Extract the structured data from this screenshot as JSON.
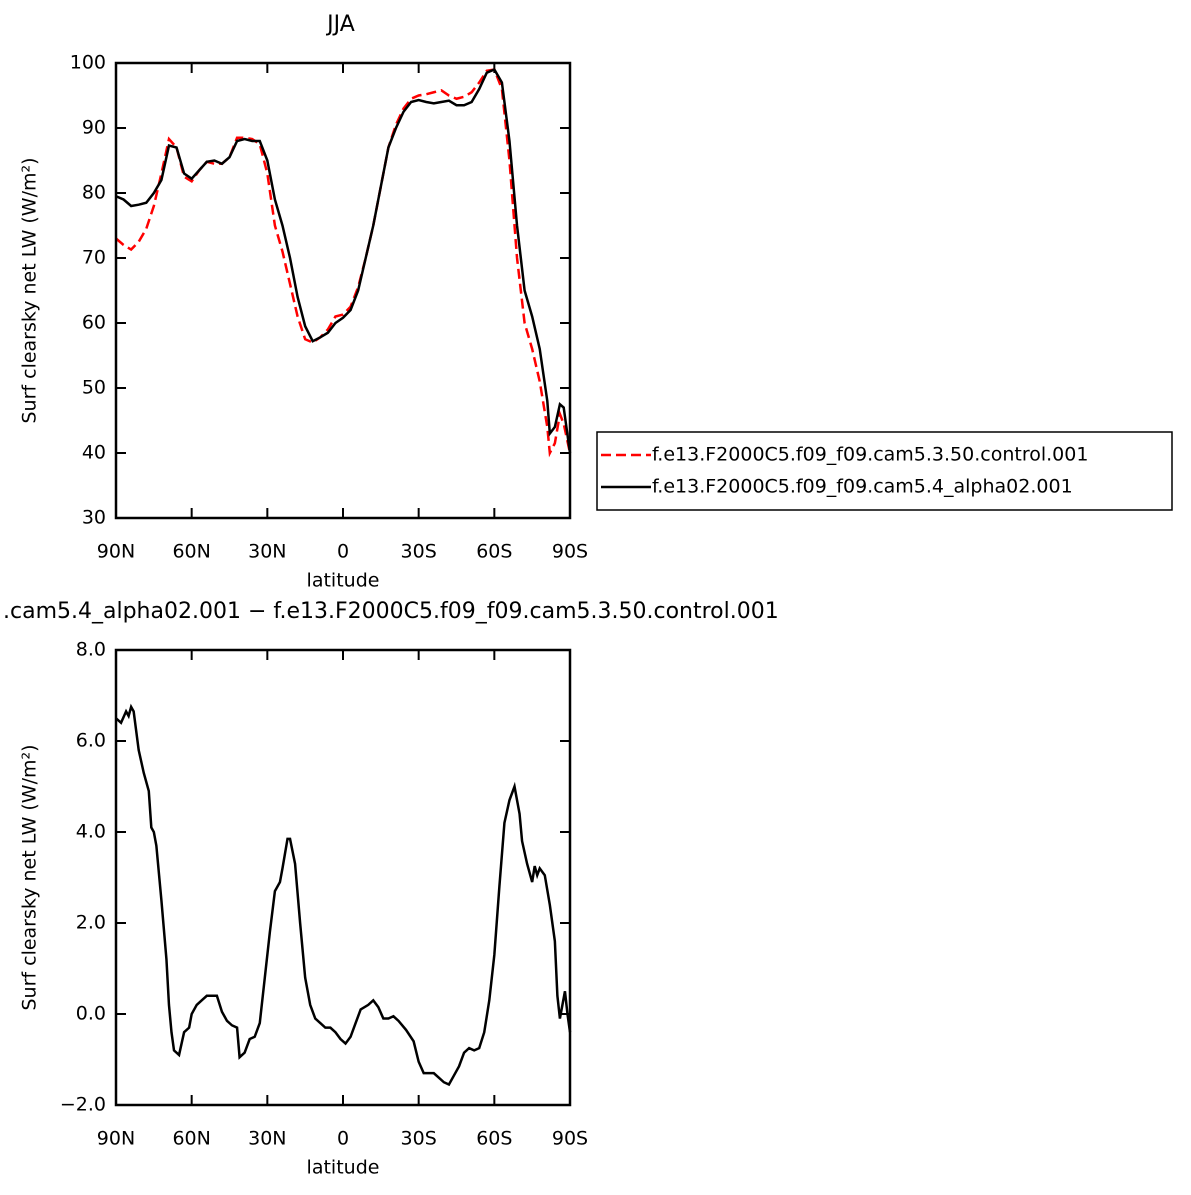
{
  "chart_data": [
    {
      "type": "line",
      "title": "JJA",
      "x_label": "latitude",
      "y_label": "Surf clearsky net LW (W/m²)",
      "x": [
        90,
        87,
        84,
        81,
        78,
        75,
        72,
        69,
        66,
        63,
        60,
        57,
        54,
        51,
        48,
        45,
        42,
        39,
        36,
        33,
        30,
        27,
        24,
        21,
        18,
        15,
        12,
        9,
        6,
        3,
        0,
        -3,
        -6,
        -9,
        -12,
        -15,
        -18,
        -21,
        -24,
        -27,
        -30,
        -33,
        -36,
        -39,
        -42,
        -45,
        -48,
        -51,
        -54,
        -57,
        -60,
        -63,
        -66,
        -69,
        -72,
        -75,
        -78,
        -81,
        -82,
        -84,
        -86,
        -87.5,
        -90
      ],
      "series": [
        {
          "name": "f.e13.F2000C5.f09_f09.cam5.3.50.control.001",
          "color": "#ff0000",
          "dash": true,
          "values": [
            73,
            72,
            71.3,
            72.5,
            74.5,
            78,
            83,
            88.3,
            87,
            82.5,
            81.8,
            83.5,
            84.8,
            84.5,
            84.5,
            85.5,
            88.5,
            88.5,
            88.3,
            87.5,
            83,
            75,
            71,
            66,
            61,
            57.5,
            57,
            57.8,
            59,
            61,
            61.3,
            62.5,
            65.5,
            70,
            75,
            81,
            87,
            90.5,
            93,
            94.5,
            95,
            95.2,
            95.5,
            95.8,
            95,
            94.5,
            94.8,
            95.5,
            97,
            98.8,
            99,
            96,
            85,
            70,
            60,
            56,
            51,
            44,
            40,
            41.5,
            46,
            44.5,
            40
          ]
        },
        {
          "name": "f.e13.F2000C5.f09_f09.cam5.4_alpha02.001",
          "color": "#000000",
          "dash": false,
          "values": [
            79.5,
            79,
            78,
            78.2,
            78.5,
            80,
            82,
            87.3,
            87,
            83,
            82.2,
            83.5,
            84.8,
            85,
            84.5,
            85.5,
            88,
            88.3,
            88,
            88,
            85,
            79,
            75,
            70,
            64,
            59.5,
            57.2,
            57.8,
            58.5,
            60,
            60.8,
            62,
            65,
            70,
            75,
            81,
            87,
            90,
            92.5,
            94,
            94.3,
            94,
            93.8,
            94,
            94.2,
            93.5,
            93.5,
            94,
            96,
            98.5,
            99,
            97,
            88,
            75,
            65,
            61,
            56,
            48,
            43,
            44,
            47.5,
            47,
            40
          ]
        }
      ],
      "xlim": [
        90,
        -90
      ],
      "xticks": [
        {
          "value": 90,
          "label": "90N"
        },
        {
          "value": 60,
          "label": "60N"
        },
        {
          "value": 30,
          "label": "30N"
        },
        0,
        {
          "value": -30,
          "label": "30S"
        },
        {
          "value": -60,
          "label": "60S"
        },
        {
          "value": -90,
          "label": "90S"
        }
      ],
      "ylim": [
        30,
        100
      ],
      "yticks": [
        30,
        40,
        50,
        60,
        70,
        80,
        90,
        100
      ],
      "legend": "outside-right"
    },
    {
      "type": "line",
      "title": ".cam5.4_alpha02.001 − f.e13.F2000C5.f09_f09.cam5.3.50.control.001",
      "x_label": "latitude",
      "y_label": "Surf clearsky net LW (W/m²)",
      "x": [
        90,
        88,
        86,
        85,
        84,
        83,
        81,
        79,
        77,
        76,
        75,
        74,
        72,
        70,
        69,
        68,
        67,
        65,
        63,
        61,
        60,
        58,
        56,
        54,
        52,
        50,
        48,
        46,
        44,
        42,
        41,
        39,
        37,
        35,
        33,
        31,
        29,
        27,
        25,
        24,
        22,
        21,
        19,
        17,
        15,
        13,
        11,
        9,
        7,
        5,
        3,
        1,
        -1,
        -3,
        -5,
        -7,
        -10,
        -12,
        -14,
        -16,
        -18,
        -20,
        -22,
        -25,
        -28,
        -30,
        -32,
        -34,
        -36,
        -38,
        -40,
        -42,
        -44,
        -46,
        -48,
        -50,
        -52,
        -54,
        -56,
        -58,
        -60,
        -62,
        -64,
        -66,
        -68,
        -70,
        -71,
        -73,
        -75,
        -76,
        -77,
        -78,
        -80,
        -82,
        -84,
        -85,
        -86,
        -87,
        -88,
        -89,
        -90
      ],
      "series": [
        {
          "name": null,
          "color": "#000000",
          "dash": false,
          "values": [
            6.5,
            6.4,
            6.65,
            6.55,
            6.75,
            6.65,
            5.8,
            5.3,
            4.9,
            4.1,
            4.0,
            3.7,
            2.5,
            1.2,
            0.2,
            -0.4,
            -0.8,
            -0.9,
            -0.4,
            -0.3,
            0.0,
            0.2,
            0.3,
            0.4,
            0.4,
            0.4,
            0.05,
            -0.15,
            -0.25,
            -0.3,
            -0.95,
            -0.85,
            -0.55,
            -0.5,
            -0.2,
            0.8,
            1.8,
            2.7,
            2.9,
            3.2,
            3.85,
            3.85,
            3.3,
            2.0,
            0.8,
            0.2,
            -0.1,
            -0.2,
            -0.3,
            -0.3,
            -0.4,
            -0.55,
            -0.65,
            -0.5,
            -0.2,
            0.1,
            0.2,
            0.3,
            0.15,
            -0.1,
            -0.1,
            -0.05,
            -0.15,
            -0.35,
            -0.6,
            -1.05,
            -1.3,
            -1.3,
            -1.3,
            -1.4,
            -1.5,
            -1.55,
            -1.35,
            -1.15,
            -0.85,
            -0.75,
            -0.8,
            -0.75,
            -0.4,
            0.3,
            1.3,
            2.8,
            4.2,
            4.7,
            5.0,
            4.4,
            3.8,
            3.3,
            2.9,
            3.25,
            3.05,
            3.2,
            3.05,
            2.4,
            1.6,
            0.4,
            -0.1,
            0.2,
            0.5,
            0.0,
            -0.4
          ]
        }
      ],
      "xlim": [
        90,
        -90
      ],
      "xticks": [
        {
          "value": 90,
          "label": "90N"
        },
        {
          "value": 60,
          "label": "60N"
        },
        {
          "value": 30,
          "label": "30N"
        },
        0,
        {
          "value": -30,
          "label": "30S"
        },
        {
          "value": -60,
          "label": "60S"
        },
        {
          "value": -90,
          "label": "90S"
        }
      ],
      "ylim": [
        -2,
        8
      ],
      "yticks": [
        {
          "value": -2,
          "label": "−2.0"
        },
        {
          "value": 0,
          "label": "0.0"
        },
        {
          "value": 2,
          "label": "2.0"
        },
        {
          "value": 4,
          "label": "4.0"
        },
        {
          "value": 6,
          "label": "6.0"
        },
        {
          "value": 8,
          "label": "8.0"
        }
      ]
    }
  ]
}
